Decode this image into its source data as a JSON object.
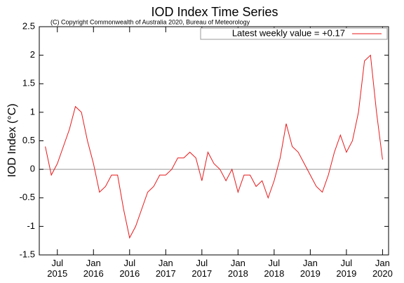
{
  "chart_data": {
    "type": "line",
    "title": "IOD Index Time Series",
    "subtitle": "(C) Copyright Commonwealth of Australia 2020, Bureau of Meteorology",
    "y_label": "IOD Index (°C)",
    "x": [
      "2015-05",
      "2015-06",
      "2015-07",
      "2015-08",
      "2015-09",
      "2015-10",
      "2015-11",
      "2015-12",
      "2016-01",
      "2016-02",
      "2016-03",
      "2016-04",
      "2016-05",
      "2016-06",
      "2016-07",
      "2016-08",
      "2016-09",
      "2016-10",
      "2016-11",
      "2016-12",
      "2017-01",
      "2017-02",
      "2017-03",
      "2017-04",
      "2017-05",
      "2017-06",
      "2017-07",
      "2017-08",
      "2017-09",
      "2017-10",
      "2017-11",
      "2017-12",
      "2018-01",
      "2018-02",
      "2018-03",
      "2018-04",
      "2018-05",
      "2018-06",
      "2018-07",
      "2018-08",
      "2018-09",
      "2018-10",
      "2018-11",
      "2018-12",
      "2019-01",
      "2019-02",
      "2019-03",
      "2019-04",
      "2019-05",
      "2019-06",
      "2019-07",
      "2019-08",
      "2019-09",
      "2019-10",
      "2019-11",
      "2019-12",
      "2020-01"
    ],
    "series": [
      {
        "name": "Latest weekly value = +0.17",
        "color": "#e8191b",
        "values": [
          0.4,
          -0.1,
          0.1,
          0.4,
          0.7,
          1.1,
          1.0,
          0.5,
          0.1,
          -0.4,
          -0.3,
          -0.1,
          -0.1,
          -0.7,
          -1.2,
          -1.0,
          -0.7,
          -0.4,
          -0.3,
          -0.1,
          -0.1,
          0.0,
          0.2,
          0.2,
          0.3,
          0.2,
          -0.2,
          0.3,
          0.1,
          0.0,
          -0.2,
          0.0,
          -0.4,
          -0.1,
          -0.1,
          -0.3,
          -0.2,
          -0.5,
          -0.2,
          0.2,
          0.8,
          0.4,
          0.3,
          0.1,
          -0.1,
          -0.3,
          -0.4,
          -0.1,
          0.3,
          0.6,
          0.3,
          0.5,
          1.0,
          1.9,
          2.0,
          1.0,
          0.17
        ]
      }
    ],
    "xlim": [
      "2015-04",
      "2020-02"
    ],
    "xticks": [
      {
        "value": "2015-07",
        "label": "Jul\n2015"
      },
      {
        "value": "2016-01",
        "label": "Jan\n2016"
      },
      {
        "value": "2016-07",
        "label": "Jul\n2016"
      },
      {
        "value": "2017-01",
        "label": "Jan\n2017"
      },
      {
        "value": "2017-07",
        "label": "Jul\n2017"
      },
      {
        "value": "2018-01",
        "label": "Jan\n2018"
      },
      {
        "value": "2018-07",
        "label": "Jul\n2018"
      },
      {
        "value": "2019-01",
        "label": "Jan\n2019"
      },
      {
        "value": "2019-07",
        "label": "Jul\n2019"
      },
      {
        "value": "2020-01",
        "label": "Jan\n2020"
      }
    ],
    "ylim": [
      -1.5,
      2.5
    ],
    "yticks": [
      -1.5,
      -1,
      -0.5,
      0,
      0.5,
      1,
      1.5,
      2,
      2.5
    ],
    "legend": "upper right"
  }
}
